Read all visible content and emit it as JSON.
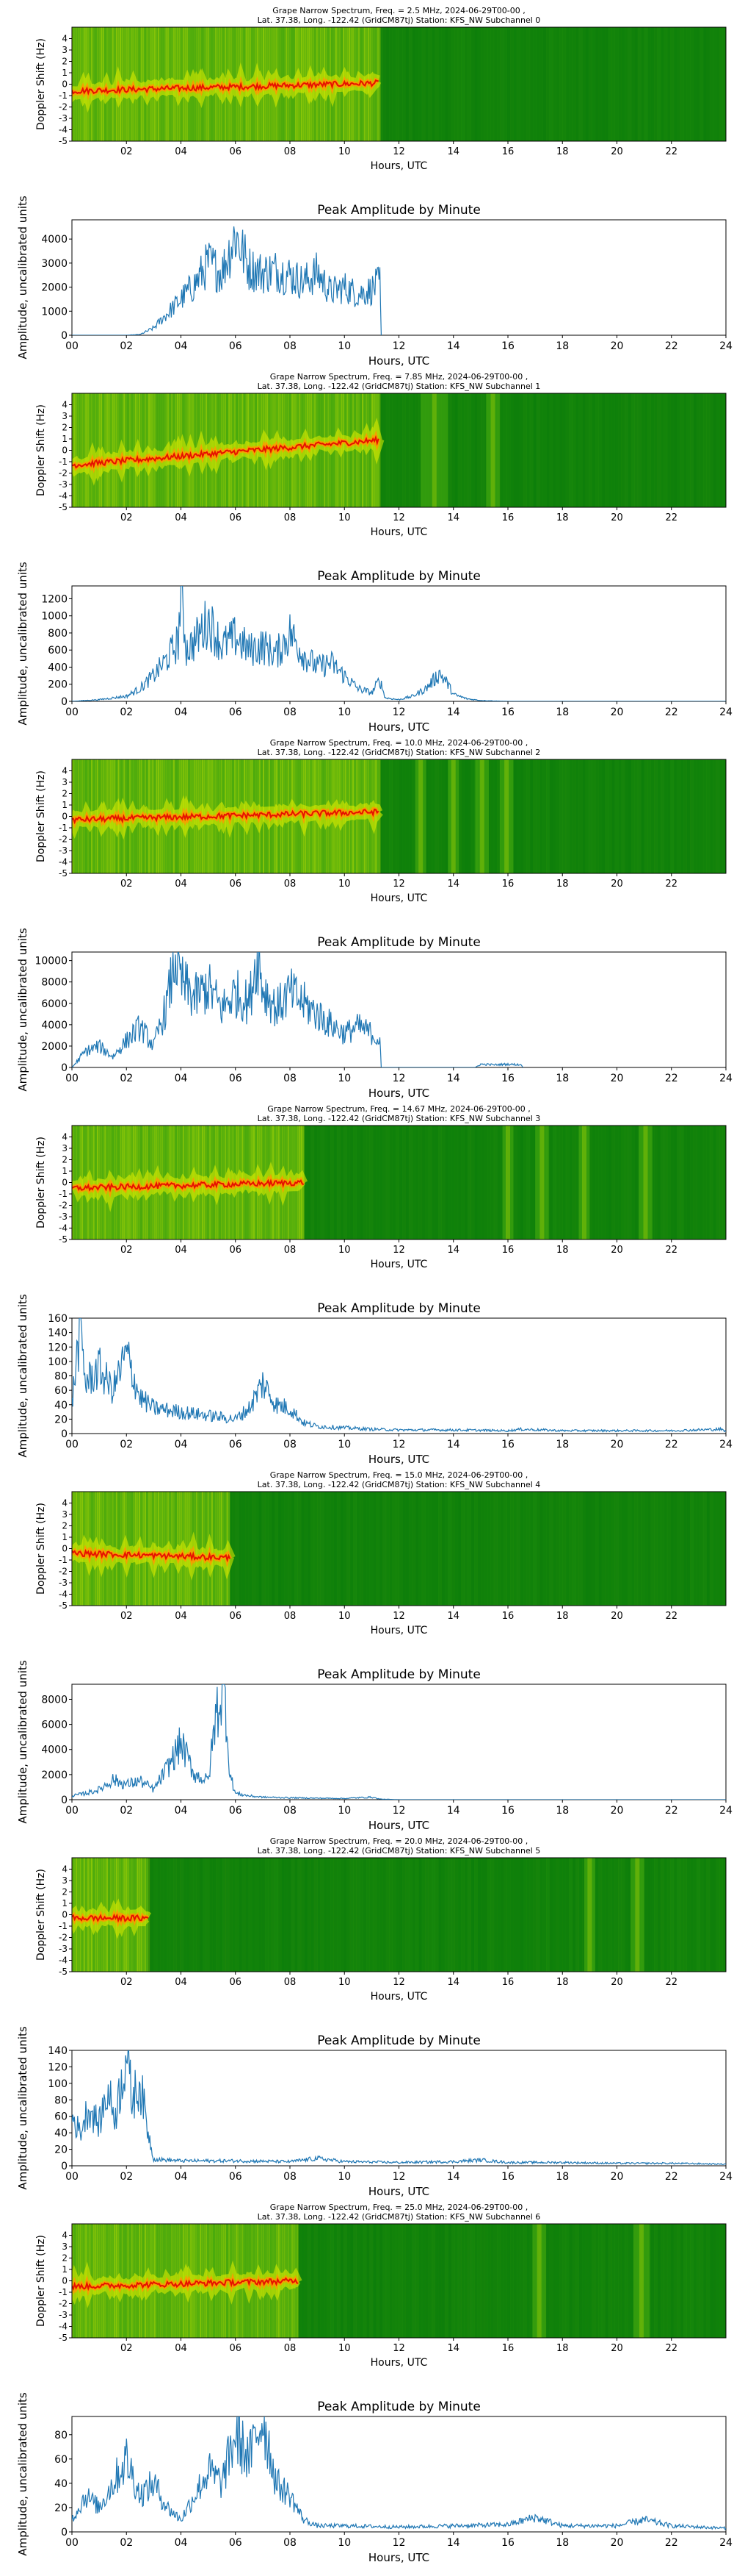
{
  "figure": {
    "colors": {
      "spec_dark": "#0a7d0a",
      "spec_mid": "#4fb010",
      "spec_bright": "#e6f000",
      "spec_hot": "#ff9900",
      "spec_peak": "#e60000",
      "line": "#1f77b4"
    }
  },
  "chart_data": [
    {
      "type": "heatmap",
      "channel": 0,
      "title_line1": "Grape Narrow Spectrum, Freq. = 2.5 MHz, 2024-06-29T00-00 ,",
      "title_line2": "Lat.  37.38, Long. -122.42 (GridCM87tj) Station: KFS_NW Subchannel 0",
      "xlabel": "Hours, UTC",
      "ylabel": "Doppler Shift (Hz)",
      "xlim": [
        0,
        24
      ],
      "ylim": [
        -5,
        5
      ],
      "x_ticks": [
        "02",
        "04",
        "06",
        "08",
        "10",
        "12",
        "14",
        "16",
        "18",
        "20",
        "22"
      ],
      "y_ticks": [
        "-5",
        "-4",
        "-3",
        "-2",
        "-1",
        "0",
        "1",
        "2",
        "3",
        "4"
      ],
      "active_hours": [
        0,
        11.3
      ],
      "trace_offset_hz": [
        -0.6,
        0.1
      ],
      "striped_bands": []
    },
    {
      "type": "line",
      "channel": 0,
      "title": "Peak Amplitude by Minute",
      "xlabel": "Hours, UTC",
      "ylabel": "Amplitude, uncalibrated units",
      "xlim": [
        0,
        24
      ],
      "ylim": [
        0,
        4800
      ],
      "x_ticks": [
        "00",
        "02",
        "04",
        "06",
        "08",
        "10",
        "12",
        "14",
        "16",
        "18",
        "20",
        "22",
        "24"
      ],
      "y_ticks": [
        "0",
        "1000",
        "2000",
        "3000",
        "4000"
      ],
      "series": [
        {
          "x": [
            0,
            2,
            2.5,
            3,
            3.5,
            4,
            4.5,
            5,
            5.5,
            6,
            6.5,
            7,
            7.5,
            8,
            8.5,
            9,
            9.5,
            10,
            10.5,
            11,
            11.3,
            11.35
          ],
          "y": [
            0,
            0,
            30,
            300,
            900,
            1500,
            2100,
            3000,
            2600,
            4200,
            2800,
            2600,
            2700,
            2500,
            2200,
            2600,
            1800,
            2000,
            1700,
            1900,
            2200,
            0
          ]
        }
      ]
    },
    {
      "type": "heatmap",
      "channel": 1,
      "title_line1": "Grape Narrow Spectrum, Freq. = 7.85 MHz, 2024-06-29T00-00 ,",
      "title_line2": "Lat.  37.38, Long. -122.42 (GridCM87tj) Station: KFS_NW Subchannel 1",
      "xlabel": "Hours, UTC",
      "ylabel": "Doppler Shift (Hz)",
      "xlim": [
        0,
        24
      ],
      "ylim": [
        -5,
        5
      ],
      "x_ticks": [
        "02",
        "04",
        "06",
        "08",
        "10",
        "12",
        "14",
        "16",
        "18",
        "20",
        "22"
      ],
      "y_ticks": [
        "-5",
        "-4",
        "-3",
        "-2",
        "-1",
        "0",
        "1",
        "2",
        "3",
        "4"
      ],
      "active_hours": [
        0,
        11.3
      ],
      "trace_offset_hz": [
        -1.3,
        0.9
      ],
      "striped_bands": [
        [
          12.8,
          13.8
        ],
        [
          15.2,
          15.7
        ]
      ]
    },
    {
      "type": "line",
      "channel": 1,
      "title": "Peak Amplitude by Minute",
      "xlabel": "Hours, UTC",
      "ylabel": "Amplitude, uncalibrated units",
      "xlim": [
        0,
        24
      ],
      "ylim": [
        0,
        1350
      ],
      "x_ticks": [
        "00",
        "02",
        "04",
        "06",
        "08",
        "10",
        "12",
        "14",
        "16",
        "18",
        "20",
        "22",
        "24"
      ],
      "y_ticks": [
        "0",
        "200",
        "400",
        "600",
        "800",
        "1000",
        "1200"
      ],
      "series": [
        {
          "x": [
            0,
            1,
            2,
            2.5,
            3,
            3.5,
            3.9,
            4,
            4.2,
            4.5,
            5,
            5.5,
            6,
            6.5,
            7,
            7.5,
            8,
            8.5,
            9,
            9.5,
            10,
            10.5,
            11,
            11.3,
            11.5,
            12,
            12.5,
            13,
            13.5,
            13.8,
            14,
            14.5,
            15,
            16,
            18,
            24
          ],
          "y": [
            0,
            20,
            60,
            150,
            300,
            500,
            700,
            1350,
            600,
            700,
            950,
            650,
            750,
            600,
            650,
            550,
            800,
            550,
            400,
            450,
            300,
            150,
            100,
            250,
            40,
            20,
            60,
            150,
            330,
            200,
            80,
            30,
            10,
            0,
            0,
            0
          ]
        }
      ]
    },
    {
      "type": "heatmap",
      "channel": 2,
      "title_line1": "Grape Narrow Spectrum, Freq. = 10.0 MHz, 2024-06-29T00-00 ,",
      "title_line2": "Lat.  37.38, Long. -122.42 (GridCM87tj) Station: KFS_NW Subchannel 2",
      "xlabel": "Hours, UTC",
      "ylabel": "Doppler Shift (Hz)",
      "xlim": [
        0,
        24
      ],
      "ylim": [
        -5,
        5
      ],
      "x_ticks": [
        "02",
        "04",
        "06",
        "08",
        "10",
        "12",
        "14",
        "16",
        "18",
        "20",
        "22"
      ],
      "y_ticks": [
        "-5",
        "-4",
        "-3",
        "-2",
        "-1",
        "0",
        "1",
        "2",
        "3",
        "4"
      ],
      "active_hours": [
        0,
        11.3
      ],
      "trace_offset_hz": [
        -0.3,
        0.4
      ],
      "striped_bands": [
        [
          12.6,
          13.0
        ],
        [
          13.8,
          14.2
        ],
        [
          14.8,
          15.3
        ],
        [
          15.7,
          16.2
        ]
      ]
    },
    {
      "type": "line",
      "channel": 2,
      "title": "Peak Amplitude by Minute",
      "xlabel": "Hours, UTC",
      "ylabel": "Amplitude, uncalibrated units",
      "xlim": [
        0,
        24
      ],
      "ylim": [
        0,
        10800
      ],
      "x_ticks": [
        "00",
        "02",
        "04",
        "06",
        "08",
        "10",
        "12",
        "14",
        "16",
        "18",
        "20",
        "22",
        "24"
      ],
      "y_ticks": [
        "0",
        "2000",
        "4000",
        "6000",
        "8000",
        "10000"
      ],
      "series": [
        {
          "x": [
            0,
            0.5,
            1,
            1.5,
            2,
            2.5,
            3,
            3.5,
            3.8,
            4,
            4.5,
            5,
            5.5,
            6,
            6.5,
            6.8,
            7,
            7.5,
            8,
            8.5,
            9,
            9.5,
            10,
            10.5,
            11,
            11.3,
            11.35,
            14.8,
            15,
            15.5,
            16,
            16.5,
            16.55
          ],
          "y": [
            0,
            1500,
            2000,
            1000,
            2500,
            3800,
            2000,
            6000,
            10500,
            8000,
            6500,
            7500,
            5500,
            7000,
            6000,
            10800,
            7500,
            5500,
            7000,
            6000,
            5000,
            4000,
            3200,
            3800,
            3200,
            2500,
            0,
            0,
            300,
            250,
            300,
            250,
            0
          ]
        }
      ]
    },
    {
      "type": "heatmap",
      "channel": 3,
      "title_line1": "Grape Narrow Spectrum, Freq. = 14.67 MHz, 2024-06-29T00-00 ,",
      "title_line2": "Lat.  37.38, Long. -122.42 (GridCM87tj) Station: KFS_NW Subchannel 3",
      "xlabel": "Hours, UTC",
      "ylabel": "Doppler Shift (Hz)",
      "xlim": [
        0,
        24
      ],
      "ylim": [
        -5,
        5
      ],
      "x_ticks": [
        "02",
        "04",
        "06",
        "08",
        "10",
        "12",
        "14",
        "16",
        "18",
        "20",
        "22"
      ],
      "y_ticks": [
        "-5",
        "-4",
        "-3",
        "-2",
        "-1",
        "0",
        "1",
        "2",
        "3",
        "4"
      ],
      "active_hours": [
        0,
        8.5
      ],
      "trace_offset_hz": [
        -0.5,
        0.0
      ],
      "striped_bands": [
        [
          15.8,
          16.2
        ],
        [
          17.0,
          17.5
        ],
        [
          18.6,
          19.0
        ],
        [
          20.8,
          21.3
        ]
      ]
    },
    {
      "type": "line",
      "channel": 3,
      "title": "Peak Amplitude by Minute",
      "xlabel": "Hours, UTC",
      "ylabel": "Amplitude, uncalibrated units",
      "xlim": [
        0,
        24
      ],
      "ylim": [
        0,
        160
      ],
      "x_ticks": [
        "00",
        "02",
        "04",
        "06",
        "08",
        "10",
        "12",
        "14",
        "16",
        "18",
        "20",
        "22",
        "24"
      ],
      "y_ticks": [
        "0",
        "20",
        "40",
        "60",
        "80",
        "100",
        "120",
        "140",
        "160"
      ],
      "series": [
        {
          "x": [
            0,
            0.3,
            0.5,
            1,
            1.5,
            2,
            2.5,
            3,
            4,
            5,
            6,
            6.5,
            7,
            7.5,
            8,
            8.5,
            9,
            10,
            11,
            12,
            14,
            16,
            16.5,
            18,
            20,
            22,
            23.8,
            24
          ],
          "y": [
            40,
            150,
            70,
            90,
            60,
            110,
            50,
            35,
            30,
            25,
            20,
            35,
            70,
            40,
            35,
            15,
            10,
            8,
            6,
            5,
            5,
            4,
            6,
            4,
            4,
            4,
            6,
            3
          ]
        }
      ]
    },
    {
      "type": "heatmap",
      "channel": 4,
      "title_line1": "Grape Narrow Spectrum, Freq. = 15.0 MHz, 2024-06-29T00-00 ,",
      "title_line2": "Lat.  37.38, Long. -122.42 (GridCM87tj) Station: KFS_NW Subchannel 4",
      "xlabel": "Hours, UTC",
      "ylabel": "Doppler Shift (Hz)",
      "xlim": [
        0,
        24
      ],
      "ylim": [
        -5,
        5
      ],
      "x_ticks": [
        "02",
        "04",
        "06",
        "08",
        "10",
        "12",
        "14",
        "16",
        "18",
        "20",
        "22"
      ],
      "y_ticks": [
        "-5",
        "-4",
        "-3",
        "-2",
        "-1",
        "0",
        "1",
        "2",
        "3",
        "4"
      ],
      "active_hours": [
        0,
        5.8
      ],
      "trace_offset_hz": [
        -0.4,
        -0.8
      ],
      "striped_bands": []
    },
    {
      "type": "line",
      "channel": 4,
      "title": "Peak Amplitude by Minute",
      "xlabel": "Hours, UTC",
      "ylabel": "Amplitude, uncalibrated units",
      "xlim": [
        0,
        24
      ],
      "ylim": [
        0,
        9200
      ],
      "x_ticks": [
        "00",
        "02",
        "04",
        "06",
        "08",
        "10",
        "12",
        "14",
        "16",
        "18",
        "20",
        "22",
        "24"
      ],
      "y_ticks": [
        "0",
        "2000",
        "4000",
        "6000",
        "8000"
      ],
      "series": [
        {
          "x": [
            0,
            0.5,
            1,
            1.5,
            2,
            2.5,
            3,
            3.5,
            4,
            4.5,
            5,
            5.3,
            5.6,
            5.8,
            6,
            6.5,
            7,
            8,
            9,
            10,
            11,
            11.3,
            12,
            24
          ],
          "y": [
            300,
            500,
            800,
            1600,
            1200,
            1500,
            800,
            2500,
            4500,
            2000,
            1500,
            7000,
            9000,
            2000,
            500,
            300,
            200,
            150,
            120,
            100,
            200,
            50,
            0,
            0
          ]
        }
      ]
    },
    {
      "type": "heatmap",
      "channel": 5,
      "title_line1": "Grape Narrow Spectrum, Freq. = 20.0 MHz, 2024-06-29T00-00 ,",
      "title_line2": "Lat.  37.38, Long. -122.42 (GridCM87tj) Station: KFS_NW Subchannel 5",
      "xlabel": "Hours, UTC",
      "ylabel": "Doppler Shift (Hz)",
      "xlim": [
        0,
        24
      ],
      "ylim": [
        -5,
        5
      ],
      "x_ticks": [
        "02",
        "04",
        "06",
        "08",
        "10",
        "12",
        "14",
        "16",
        "18",
        "20",
        "22"
      ],
      "y_ticks": [
        "-5",
        "-4",
        "-3",
        "-2",
        "-1",
        "0",
        "1",
        "2",
        "3",
        "4"
      ],
      "active_hours": [
        0,
        2.8
      ],
      "trace_offset_hz": [
        -0.3,
        -0.3
      ],
      "striped_bands": [
        [
          18.8,
          19.2
        ],
        [
          20.5,
          21.0
        ]
      ]
    },
    {
      "type": "line",
      "channel": 5,
      "title": "Peak Amplitude by Minute",
      "xlabel": "Hours, UTC",
      "ylabel": "Amplitude, uncalibrated units",
      "xlim": [
        0,
        24
      ],
      "ylim": [
        0,
        140
      ],
      "x_ticks": [
        "00",
        "02",
        "04",
        "06",
        "08",
        "10",
        "12",
        "14",
        "16",
        "18",
        "20",
        "22",
        "24"
      ],
      "y_ticks": [
        "0",
        "20",
        "40",
        "60",
        "80",
        "100",
        "120",
        "140"
      ],
      "series": [
        {
          "x": [
            0,
            0.3,
            0.6,
            1,
            1.3,
            1.6,
            2,
            2.2,
            2.5,
            2.8,
            3,
            4,
            6,
            8,
            9,
            10,
            12,
            14,
            15,
            16,
            18,
            20,
            22,
            24
          ],
          "y": [
            60,
            40,
            70,
            50,
            90,
            60,
            140,
            80,
            100,
            40,
            8,
            6,
            6,
            5,
            9,
            5,
            4,
            5,
            7,
            4,
            4,
            3,
            3,
            2
          ]
        }
      ]
    },
    {
      "type": "heatmap",
      "channel": 6,
      "title_line1": "Grape Narrow Spectrum, Freq. = 25.0 MHz, 2024-06-29T00-00 ,",
      "title_line2": "Lat.  37.38, Long. -122.42 (GridCM87tj) Station: KFS_NW Subchannel 6",
      "xlabel": "Hours, UTC",
      "ylabel": "Doppler Shift (Hz)",
      "xlim": [
        0,
        24
      ],
      "ylim": [
        -5,
        5
      ],
      "x_ticks": [
        "02",
        "04",
        "06",
        "08",
        "10",
        "12",
        "14",
        "16",
        "18",
        "20",
        "22"
      ],
      "y_ticks": [
        "-5",
        "-4",
        "-3",
        "-2",
        "-1",
        "0",
        "1",
        "2",
        "3",
        "4"
      ],
      "active_hours": [
        0,
        8.3
      ],
      "trace_offset_hz": [
        -0.5,
        0.0
      ],
      "striped_bands": [
        [
          16.9,
          17.4
        ],
        [
          20.6,
          21.2
        ]
      ]
    },
    {
      "type": "line",
      "channel": 6,
      "title": "Peak Amplitude by Minute",
      "xlabel": "Hours, UTC",
      "ylabel": "Amplitude, uncalibrated units",
      "xlim": [
        0,
        24
      ],
      "ylim": [
        0,
        95
      ],
      "x_ticks": [
        "00",
        "02",
        "04",
        "06",
        "08",
        "10",
        "12",
        "14",
        "16",
        "18",
        "20",
        "22",
        "24"
      ],
      "y_ticks": [
        "0",
        "20",
        "40",
        "60",
        "80"
      ],
      "series": [
        {
          "x": [
            0,
            0.5,
            1,
            1.5,
            2,
            2.5,
            3,
            3.5,
            4,
            4.5,
            5,
            5.5,
            6,
            6.5,
            7,
            7.5,
            8,
            8.5,
            9,
            10,
            12,
            14,
            16,
            17,
            18,
            20,
            21,
            22,
            24
          ],
          "y": [
            10,
            30,
            20,
            40,
            60,
            30,
            40,
            20,
            10,
            30,
            50,
            40,
            80,
            60,
            95,
            40,
            30,
            10,
            5,
            5,
            4,
            5,
            6,
            12,
            5,
            5,
            10,
            5,
            3
          ]
        }
      ]
    }
  ]
}
